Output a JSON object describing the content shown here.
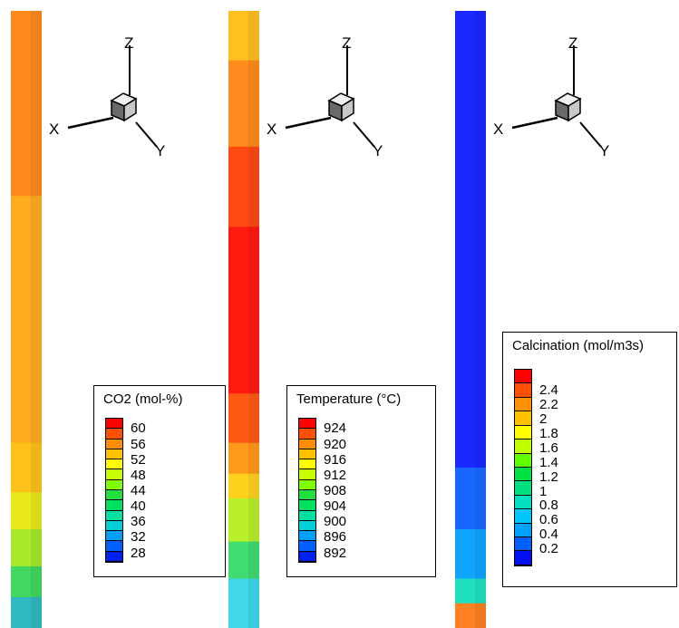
{
  "axis_labels": {
    "x": "X",
    "y": "Y",
    "z": "Z"
  },
  "panels": [
    {
      "id": "co2",
      "legend": {
        "title": "CO2 (mol-%)",
        "levels": [
          "#ff0000",
          "#ff5000",
          "#ff8c00",
          "#ffc000",
          "#ffff00",
          "#c8ff00",
          "#80ff00",
          "#20e040",
          "#00e060",
          "#00e0a0",
          "#00d0d8",
          "#00a0ff",
          "#0060ff",
          "#0020f0"
        ],
        "ticks": [
          "60",
          "56",
          "52",
          "48",
          "44",
          "40",
          "36",
          "32",
          "28"
        ]
      },
      "column": [
        {
          "from": 0.0,
          "to": 0.3,
          "color": "#ff8a1c"
        },
        {
          "from": 0.3,
          "to": 0.7,
          "color": "#ffad1e"
        },
        {
          "from": 0.7,
          "to": 0.78,
          "color": "#ffc21a"
        },
        {
          "from": 0.78,
          "to": 0.84,
          "color": "#e8e81a"
        },
        {
          "from": 0.84,
          "to": 0.9,
          "color": "#a6ea2a"
        },
        {
          "from": 0.9,
          "to": 0.95,
          "color": "#40d860"
        },
        {
          "from": 0.95,
          "to": 1.0,
          "color": "#30b8c0"
        }
      ]
    },
    {
      "id": "temperature",
      "legend": {
        "title": "Temperature (°C)",
        "levels": [
          "#ff0000",
          "#ff5000",
          "#ff8c00",
          "#ffc000",
          "#ffff00",
          "#c8ff00",
          "#80ff00",
          "#20e040",
          "#00e060",
          "#00e0a0",
          "#00d0d8",
          "#00a0ff",
          "#0060ff",
          "#0020f0"
        ],
        "ticks": [
          "924",
          "920",
          "916",
          "912",
          "908",
          "904",
          "900",
          "896",
          "892"
        ]
      },
      "column": [
        {
          "from": 0.0,
          "to": 0.08,
          "color": "#ffc020"
        },
        {
          "from": 0.08,
          "to": 0.22,
          "color": "#ff8c1c"
        },
        {
          "from": 0.22,
          "to": 0.35,
          "color": "#ff4a14"
        },
        {
          "from": 0.35,
          "to": 0.62,
          "color": "#ff1a10"
        },
        {
          "from": 0.62,
          "to": 0.7,
          "color": "#ff5a14"
        },
        {
          "from": 0.7,
          "to": 0.75,
          "color": "#ff9a1c"
        },
        {
          "from": 0.75,
          "to": 0.79,
          "color": "#ffd21e"
        },
        {
          "from": 0.79,
          "to": 0.86,
          "color": "#b8f02a"
        },
        {
          "from": 0.86,
          "to": 0.92,
          "color": "#40dc70"
        },
        {
          "from": 0.92,
          "to": 1.0,
          "color": "#40d8e8"
        }
      ]
    },
    {
      "id": "calcination",
      "legend": {
        "title": "Calcination (mol/m3s)",
        "levels": [
          "#ff0000",
          "#ff5000",
          "#ff9000",
          "#ffc000",
          "#ffff00",
          "#c0ff00",
          "#60ff00",
          "#00e040",
          "#00e080",
          "#00e0c0",
          "#00c8ff",
          "#00a0ff",
          "#0060ff",
          "#0010f0"
        ],
        "ticks": [
          "2.4",
          "2.2",
          "2",
          "1.8",
          "1.6",
          "1.4",
          "1.2",
          "1",
          "0.8",
          "0.6",
          "0.4",
          "0.2"
        ]
      },
      "column": [
        {
          "from": 0.0,
          "to": 0.74,
          "color": "#1a28ff"
        },
        {
          "from": 0.74,
          "to": 0.84,
          "color": "#1868ff"
        },
        {
          "from": 0.84,
          "to": 0.92,
          "color": "#10a4ff"
        },
        {
          "from": 0.92,
          "to": 0.96,
          "color": "#20e0c0"
        },
        {
          "from": 0.96,
          "to": 1.0,
          "color": "#ff8020"
        }
      ]
    }
  ]
}
